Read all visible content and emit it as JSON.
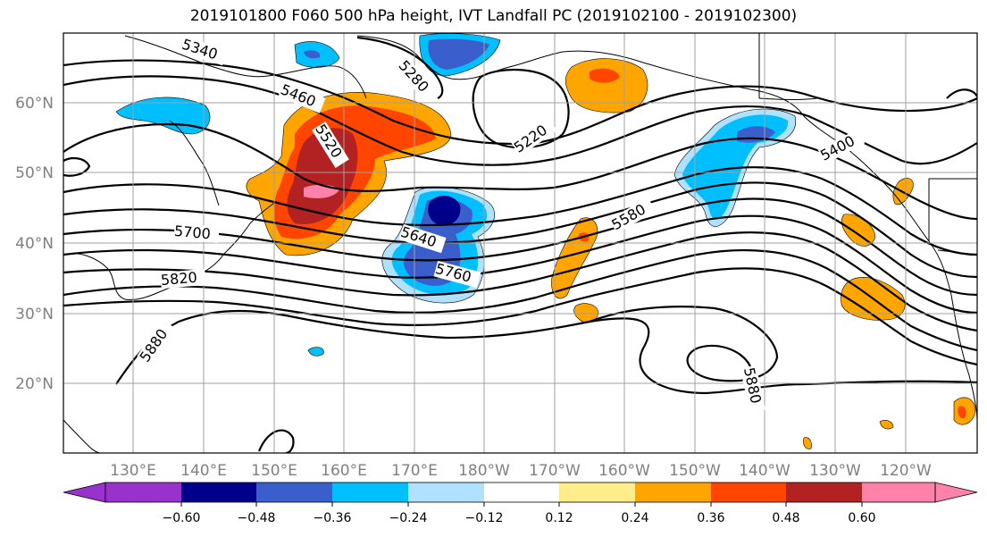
{
  "title": "2019101800 F060 500 hPa height, IVT Landfall PC (2019102100 - 2019102300)",
  "map": {
    "lat_labels": [
      "60°N",
      "50°N",
      "40°N",
      "30°N",
      "20°N"
    ],
    "lon_labels": [
      "130°E",
      "140°E",
      "150°E",
      "160°E",
      "170°E",
      "180°W",
      "170°W",
      "160°W",
      "150°W",
      "140°W",
      "130°W",
      "120°W"
    ],
    "contour_labels": [
      "5340",
      "5460",
      "5520",
      "5280",
      "5220",
      "5400",
      "5580",
      "5640",
      "5760",
      "5700",
      "5820",
      "5880",
      "5880"
    ]
  },
  "colorbar": {
    "colors": [
      "#9932cc",
      "#00008b",
      "#3a5fcd",
      "#00bfff",
      "#b0e2ff",
      "#ffffff",
      "#ffec8b",
      "#ffa500",
      "#ff4500",
      "#b22222",
      "#ff82ab"
    ],
    "ticks": [
      "−0.60",
      "−0.48",
      "−0.36",
      "−0.24",
      "−0.12",
      "0.12",
      "0.24",
      "0.36",
      "0.48",
      "0.60"
    ]
  }
}
